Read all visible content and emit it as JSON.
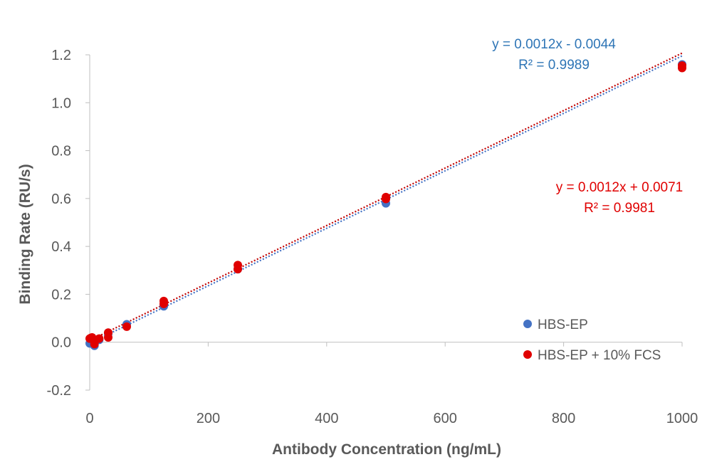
{
  "chart_data": {
    "type": "scatter",
    "xlabel": "Antibody Concentration (ng/mL)",
    "ylabel": "Binding Rate (RU/s)",
    "xlim": [
      0,
      1000
    ],
    "ylim": [
      -0.2,
      1.2
    ],
    "x_ticks": [
      "0",
      "200",
      "400",
      "600",
      "800",
      "1000"
    ],
    "y_ticks": [
      "-0.2",
      "0.0",
      "0.2",
      "0.4",
      "0.6",
      "0.8",
      "1.0",
      "1.2"
    ],
    "x_tick_values": [
      0,
      200,
      400,
      600,
      800,
      1000
    ],
    "y_tick_values": [
      -0.2,
      0,
      0.2,
      0.4,
      0.6,
      0.8,
      1.0,
      1.2
    ],
    "grid": false,
    "legend_position": "bottom-right",
    "series": [
      {
        "name": "HBS-EP",
        "color": "#4472C4",
        "points": [
          [
            0,
            -0.005
          ],
          [
            2,
            0.0
          ],
          [
            4,
            0.005
          ],
          [
            8,
            -0.015
          ],
          [
            16,
            0.01
          ],
          [
            31.25,
            0.035
          ],
          [
            62.5,
            0.075
          ],
          [
            125,
            0.15
          ],
          [
            250,
            0.305
          ],
          [
            500,
            0.58
          ],
          [
            1000,
            1.16
          ]
        ],
        "trendline": {
          "slope": 0.0012,
          "intercept": -0.0044,
          "color": "#4472C4"
        },
        "equation": "y = 0.0012x - 0.0044",
        "r_squared": "R² = 0.9989",
        "equation_color": "#2E75B6"
      },
      {
        "name": "HBS-EP + 10% FCS",
        "color": "#E00000",
        "points": [
          [
            0,
            0.015
          ],
          [
            2,
            0.018
          ],
          [
            4,
            0.02
          ],
          [
            8,
            -0.008
          ],
          [
            16,
            0.015
          ],
          [
            31.25,
            0.02
          ],
          [
            31.25,
            0.04
          ],
          [
            62.5,
            0.065
          ],
          [
            125,
            0.16
          ],
          [
            125,
            0.172
          ],
          [
            250,
            0.305
          ],
          [
            250,
            0.322
          ],
          [
            500,
            0.598
          ],
          [
            500,
            0.606
          ],
          [
            1000,
            1.145
          ],
          [
            1000,
            1.155
          ]
        ],
        "trendline": {
          "slope": 0.0012,
          "intercept": 0.0071,
          "color": "#C00000"
        },
        "equation": "y = 0.0012x + 0.0071",
        "r_squared": "R² = 0.9981",
        "equation_color": "#E00000"
      }
    ]
  }
}
